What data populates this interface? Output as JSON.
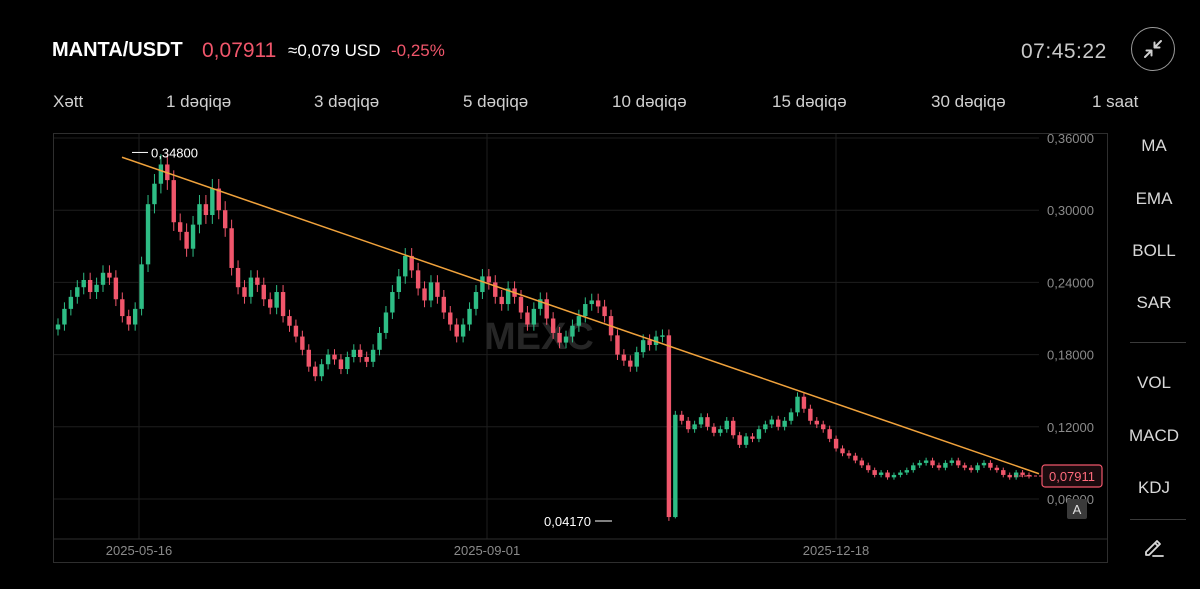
{
  "header": {
    "pair": "MANTA/USDT",
    "price": "0,07911",
    "usd_price": "≈0,079 USD",
    "change": "-0,25%",
    "clock": "07:45:22",
    "collapse_icon": "collapse-arrows-icon"
  },
  "intervals": [
    "Xətt",
    "1 dəqiqə",
    "3 dəqiqə",
    "5 dəqiqə",
    "10 dəqiqə",
    "15 dəqiqə",
    "30 dəqiqə",
    "1 saat"
  ],
  "indicators": {
    "main": [
      "MA",
      "EMA",
      "BOLL",
      "SAR"
    ],
    "sub": [
      "VOL",
      "MACD",
      "KDJ"
    ],
    "edit_icon": "pencil-icon"
  },
  "chart": {
    "watermark": "MEXC",
    "auto_scale_label": "A",
    "colors": {
      "up": "#2ebd85",
      "down": "#f0566b",
      "trendline": "#f0a23c",
      "grid": "#1e1e1e"
    }
  },
  "chart_data": {
    "type": "candlestick",
    "y_axis": {
      "ticks": [
        "0,36000",
        "0,30000",
        "0,24000",
        "0,18000",
        "0,12000",
        "0,06000"
      ],
      "ylim": [
        0.04,
        0.37
      ]
    },
    "x_axis": {
      "ticks": [
        "2025-05-16",
        "2025-09-01",
        "2025-12-18"
      ]
    },
    "current_price_label": "0,07911",
    "annotations": {
      "high_label": "0,34800",
      "low_label": "0,04170"
    },
    "trendline": {
      "from": {
        "date": "2025-05-12",
        "price": 0.344
      },
      "to": {
        "date": "2026-02-09",
        "price": 0.081
      }
    },
    "candles_close_path": [
      0.205,
      0.218,
      0.228,
      0.236,
      0.242,
      0.232,
      0.238,
      0.248,
      0.244,
      0.226,
      0.212,
      0.205,
      0.218,
      0.255,
      0.305,
      0.322,
      0.338,
      0.325,
      0.29,
      0.282,
      0.268,
      0.288,
      0.305,
      0.296,
      0.318,
      0.3,
      0.285,
      0.252,
      0.236,
      0.228,
      0.244,
      0.238,
      0.226,
      0.219,
      0.232,
      0.212,
      0.204,
      0.195,
      0.184,
      0.17,
      0.162,
      0.172,
      0.18,
      0.176,
      0.168,
      0.178,
      0.184,
      0.178,
      0.174,
      0.184,
      0.198,
      0.215,
      0.232,
      0.245,
      0.262,
      0.25,
      0.235,
      0.225,
      0.24,
      0.228,
      0.215,
      0.205,
      0.195,
      0.205,
      0.218,
      0.232,
      0.245,
      0.24,
      0.228,
      0.222,
      0.235,
      0.228,
      0.215,
      0.205,
      0.218,
      0.226,
      0.21,
      0.198,
      0.19,
      0.195,
      0.204,
      0.212,
      0.222,
      0.225,
      0.22,
      0.212,
      0.196,
      0.18,
      0.175,
      0.17,
      0.182,
      0.192,
      0.188,
      0.195,
      0.196,
      0.045,
      0.13,
      0.125,
      0.118,
      0.122,
      0.128,
      0.12,
      0.115,
      0.118,
      0.125,
      0.113,
      0.105,
      0.112,
      0.11,
      0.118,
      0.122,
      0.126,
      0.12,
      0.125,
      0.132,
      0.145,
      0.135,
      0.125,
      0.122,
      0.118,
      0.11,
      0.102,
      0.098,
      0.096,
      0.092,
      0.088,
      0.084,
      0.08,
      0.082,
      0.078,
      0.08,
      0.082,
      0.084,
      0.088,
      0.09,
      0.092,
      0.088,
      0.086,
      0.09,
      0.092,
      0.088,
      0.086,
      0.084,
      0.088,
      0.09,
      0.086,
      0.084,
      0.08,
      0.078,
      0.082,
      0.08,
      0.079
    ]
  }
}
